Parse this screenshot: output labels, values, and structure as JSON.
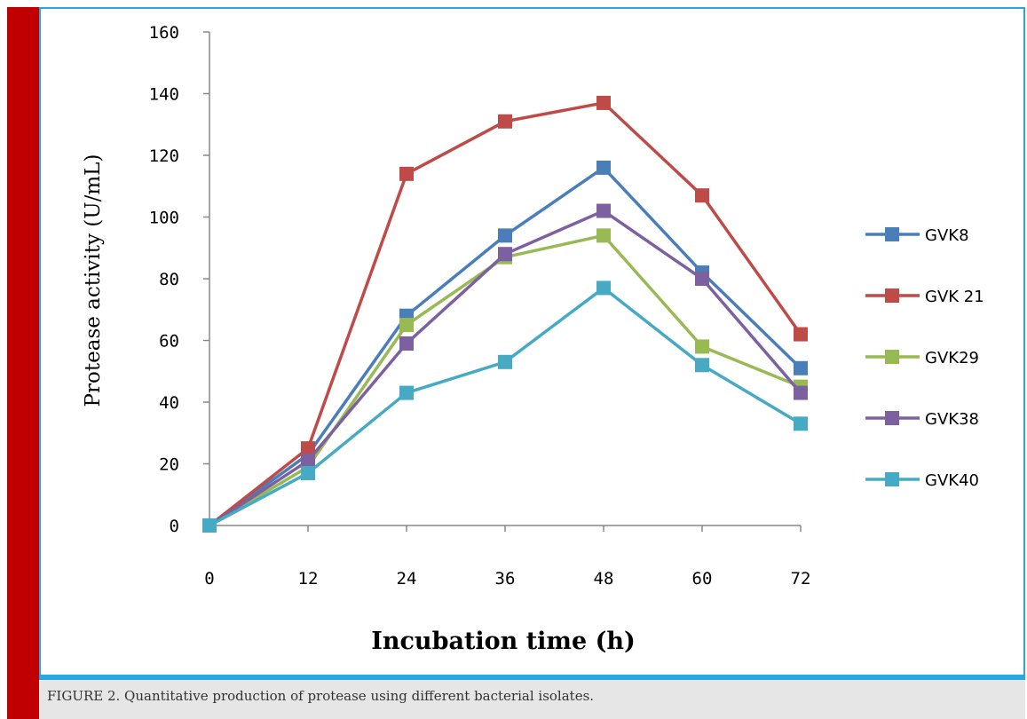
{
  "caption": "FIGURE 2. Quantitative production of protease using different bacterial isolates.",
  "chart_data": {
    "type": "line",
    "title": "",
    "xlabel": "Incubation time (h)",
    "ylabel": "Protease activity (U/mL)",
    "x": [
      0,
      12,
      24,
      36,
      48,
      60,
      72
    ],
    "x_ticks": [
      "0",
      "12",
      "24",
      "36",
      "48",
      "60",
      "72"
    ],
    "y_ticks": [
      "0",
      "20",
      "40",
      "60",
      "80",
      "100",
      "120",
      "140",
      "160"
    ],
    "ylim": [
      0,
      160
    ],
    "grid": false,
    "legend_position": "right",
    "series": [
      {
        "name": "GVK8",
        "color": "#4a7ebb",
        "values": [
          0,
          23,
          68,
          94,
          116,
          82,
          51
        ]
      },
      {
        "name": "GVK 21",
        "color": "#be4b48",
        "values": [
          0,
          25,
          114,
          131,
          137,
          107,
          62
        ]
      },
      {
        "name": "GVK29",
        "color": "#98b954",
        "values": [
          0,
          19,
          65,
          87,
          94,
          58,
          45
        ]
      },
      {
        "name": "GVK38",
        "color": "#7d60a0",
        "values": [
          0,
          21,
          59,
          88,
          102,
          80,
          43
        ]
      },
      {
        "name": "GVK40",
        "color": "#46aac4",
        "values": [
          0,
          17,
          43,
          53,
          77,
          52,
          33
        ]
      }
    ]
  }
}
